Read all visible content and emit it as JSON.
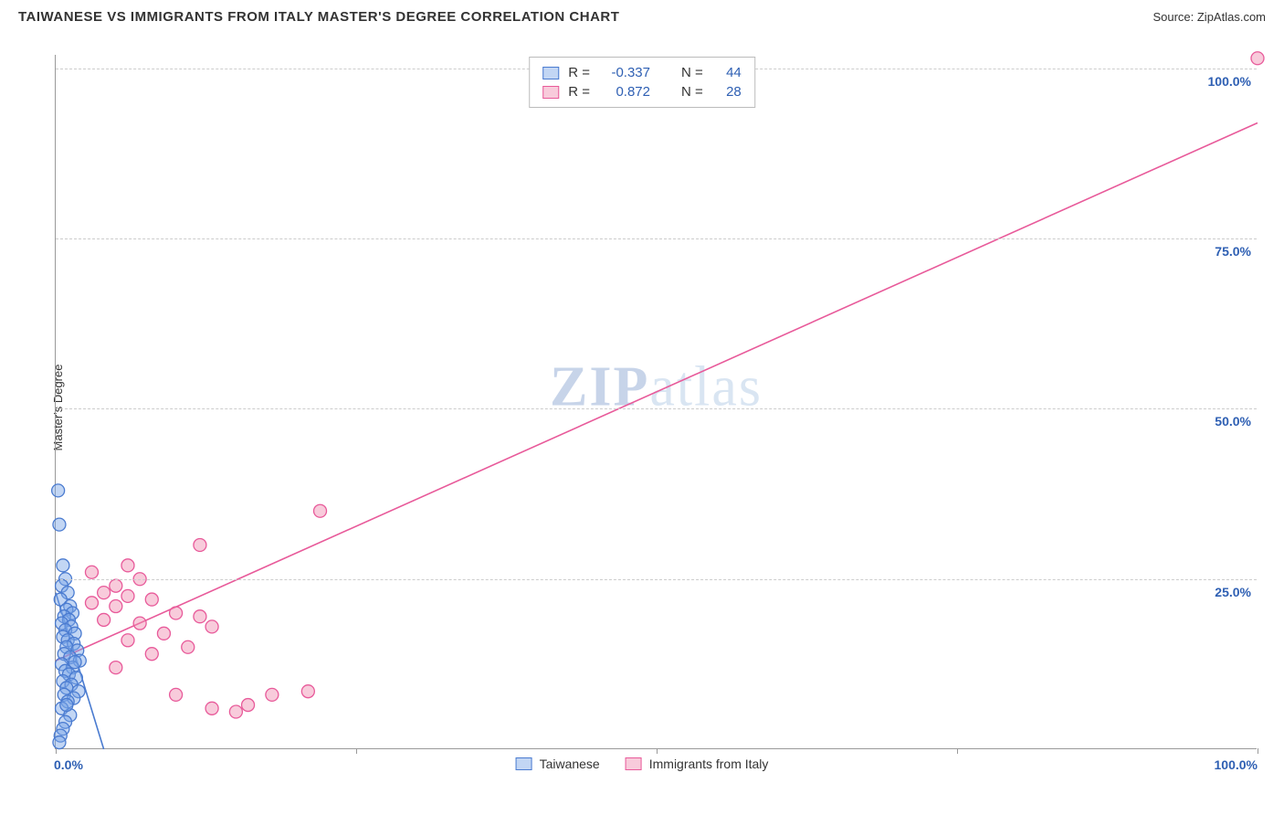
{
  "title": "TAIWANESE VS IMMIGRANTS FROM ITALY MASTER'S DEGREE CORRELATION CHART",
  "source": "Source: ZipAtlas.com",
  "watermark": "ZIPatlas",
  "ylabel": "Master's Degree",
  "chart": {
    "type": "scatter",
    "xlim": [
      0,
      100
    ],
    "ylim": [
      0,
      102
    ],
    "x_ticks": [
      0,
      25,
      50,
      75,
      100
    ],
    "y_ticks": [
      25,
      50,
      75,
      100
    ],
    "y_tick_labels": [
      "25.0%",
      "50.0%",
      "75.0%",
      "100.0%"
    ],
    "x_tick_labels_shown": {
      "0": "0.0%",
      "100": "100.0%"
    },
    "grid_color": "#cccccc",
    "axis_color": "#999999",
    "background": "#ffffff",
    "tick_label_color": "#2e5fb3",
    "series": [
      {
        "name": "Taiwanese",
        "color_fill": "rgba(120,165,230,0.45)",
        "color_stroke": "#4a7bd0",
        "points": [
          [
            0.2,
            38
          ],
          [
            0.3,
            33
          ],
          [
            0.6,
            27
          ],
          [
            0.8,
            25
          ],
          [
            0.5,
            24
          ],
          [
            1.0,
            23
          ],
          [
            0.4,
            22
          ],
          [
            1.2,
            21
          ],
          [
            0.9,
            20.5
          ],
          [
            1.4,
            20
          ],
          [
            0.7,
            19.5
          ],
          [
            1.1,
            19
          ],
          [
            0.5,
            18.5
          ],
          [
            1.3,
            18
          ],
          [
            0.8,
            17.5
          ],
          [
            1.6,
            17
          ],
          [
            0.6,
            16.5
          ],
          [
            1.0,
            16
          ],
          [
            1.5,
            15.5
          ],
          [
            0.9,
            15
          ],
          [
            1.8,
            14.5
          ],
          [
            0.7,
            14
          ],
          [
            1.2,
            13.5
          ],
          [
            2.0,
            13
          ],
          [
            0.5,
            12.5
          ],
          [
            1.4,
            12
          ],
          [
            0.8,
            11.5
          ],
          [
            1.1,
            11
          ],
          [
            1.7,
            10.5
          ],
          [
            0.6,
            10
          ],
          [
            1.3,
            9.5
          ],
          [
            0.9,
            9
          ],
          [
            1.9,
            8.5
          ],
          [
            0.7,
            8
          ],
          [
            1.5,
            7.5
          ],
          [
            1.0,
            7
          ],
          [
            0.5,
            6
          ],
          [
            1.2,
            5
          ],
          [
            0.8,
            4
          ],
          [
            0.6,
            3
          ],
          [
            0.4,
            2
          ],
          [
            0.3,
            1
          ],
          [
            0.9,
            6.5
          ],
          [
            1.6,
            12.8
          ]
        ],
        "regression": {
          "x1": 0,
          "y1": 23,
          "x2": 4,
          "y2": 0
        },
        "r": "-0.337",
        "n": "44"
      },
      {
        "name": "Immigrants from Italy",
        "color_fill": "rgba(240,140,175,0.45)",
        "color_stroke": "#e85a9a",
        "points": [
          [
            100,
            101.5
          ],
          [
            22,
            35
          ],
          [
            12,
            30
          ],
          [
            3,
            26
          ],
          [
            7,
            25
          ],
          [
            5,
            24
          ],
          [
            4,
            23
          ],
          [
            6,
            22.5
          ],
          [
            8,
            22
          ],
          [
            3,
            21.5
          ],
          [
            5,
            21
          ],
          [
            10,
            20
          ],
          [
            12,
            19.5
          ],
          [
            4,
            19
          ],
          [
            7,
            18.5
          ],
          [
            13,
            18
          ],
          [
            9,
            17
          ],
          [
            6,
            16
          ],
          [
            11,
            15
          ],
          [
            8,
            14
          ],
          [
            5,
            12
          ],
          [
            10,
            8
          ],
          [
            13,
            6
          ],
          [
            16,
            6.5
          ],
          [
            18,
            8
          ],
          [
            21,
            8.5
          ],
          [
            15,
            5.5
          ],
          [
            6,
            27
          ]
        ],
        "regression": {
          "x1": 0,
          "y1": 13,
          "x2": 100,
          "y2": 92
        },
        "r": "0.872",
        "n": "28"
      }
    ],
    "marker_radius": 7,
    "marker_stroke_width": 1.3,
    "line_width": 1.6
  },
  "legend_top": {
    "rows": [
      {
        "swatch_fill": "rgba(120,165,230,0.45)",
        "swatch_stroke": "#4a7bd0",
        "r_label": "R =",
        "r": "-0.337",
        "n_label": "N =",
        "n": "44",
        "val_color": "#2e5fb3"
      },
      {
        "swatch_fill": "rgba(240,140,175,0.45)",
        "swatch_stroke": "#e85a9a",
        "r_label": "R =",
        "r": "0.872",
        "n_label": "N =",
        "n": "28",
        "val_color": "#2e5fb3"
      }
    ]
  },
  "legend_bottom": {
    "items": [
      {
        "swatch_fill": "rgba(120,165,230,0.45)",
        "swatch_stroke": "#4a7bd0",
        "label": "Taiwanese"
      },
      {
        "swatch_fill": "rgba(240,140,175,0.45)",
        "swatch_stroke": "#e85a9a",
        "label": "Immigrants from Italy"
      }
    ]
  }
}
